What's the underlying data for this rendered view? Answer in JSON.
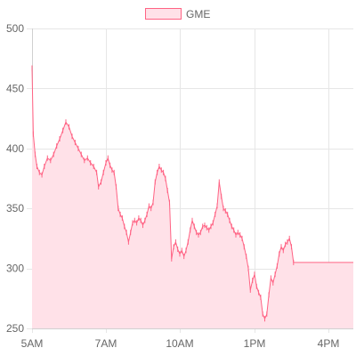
{
  "chart_data": {
    "type": "area",
    "series": [
      {
        "name": "GME",
        "color": "#ff6384",
        "fill": "#ffe1e8",
        "points": [
          [
            "05:00",
            467
          ],
          [
            "05:02",
            412
          ],
          [
            "05:05",
            395
          ],
          [
            "05:08",
            385
          ],
          [
            "05:12",
            380
          ],
          [
            "05:16",
            378
          ],
          [
            "05:20",
            385
          ],
          [
            "05:25",
            392
          ],
          [
            "05:30",
            390
          ],
          [
            "05:35",
            395
          ],
          [
            "05:40",
            402
          ],
          [
            "05:45",
            408
          ],
          [
            "05:50",
            415
          ],
          [
            "05:55",
            422
          ],
          [
            "06:00",
            418
          ],
          [
            "06:05",
            410
          ],
          [
            "06:10",
            405
          ],
          [
            "06:15",
            400
          ],
          [
            "06:20",
            395
          ],
          [
            "06:25",
            390
          ],
          [
            "06:30",
            392
          ],
          [
            "06:35",
            388
          ],
          [
            "06:40",
            385
          ],
          [
            "06:45",
            380
          ],
          [
            "06:48",
            368
          ],
          [
            "06:52",
            372
          ],
          [
            "06:56",
            380
          ],
          [
            "07:00",
            388
          ],
          [
            "07:05",
            392
          ],
          [
            "07:10",
            386
          ],
          [
            "07:15",
            382
          ],
          [
            "07:20",
            380
          ],
          [
            "07:25",
            368
          ],
          [
            "07:30",
            350
          ],
          [
            "07:35",
            345
          ],
          [
            "07:40",
            342
          ],
          [
            "07:45",
            335
          ],
          [
            "07:50",
            330
          ],
          [
            "07:55",
            322
          ],
          [
            "08:00",
            330
          ],
          [
            "08:05",
            338
          ],
          [
            "08:10",
            340
          ],
          [
            "08:15",
            338
          ],
          [
            "08:20",
            342
          ],
          [
            "08:25",
            340
          ],
          [
            "08:30",
            336
          ],
          [
            "08:35",
            340
          ],
          [
            "08:40",
            345
          ],
          [
            "08:45",
            352
          ],
          [
            "08:50",
            350
          ],
          [
            "08:55",
            355
          ],
          [
            "09:00",
            372
          ],
          [
            "09:05",
            380
          ],
          [
            "09:10",
            385
          ],
          [
            "09:15",
            382
          ],
          [
            "09:20",
            380
          ],
          [
            "09:25",
            375
          ],
          [
            "09:30",
            365
          ],
          [
            "09:35",
            355
          ],
          [
            "09:40",
            308
          ],
          [
            "09:45",
            318
          ],
          [
            "09:50",
            322
          ],
          [
            "09:55",
            316
          ],
          [
            "10:00",
            312
          ],
          [
            "10:05",
            315
          ],
          [
            "10:10",
            310
          ],
          [
            "10:15",
            315
          ],
          [
            "10:20",
            322
          ],
          [
            "10:25",
            332
          ],
          [
            "10:30",
            340
          ],
          [
            "10:35",
            335
          ],
          [
            "10:40",
            330
          ],
          [
            "10:45",
            328
          ],
          [
            "10:50",
            330
          ],
          [
            "10:55",
            335
          ],
          [
            "11:00",
            336
          ],
          [
            "11:05",
            334
          ],
          [
            "11:10",
            332
          ],
          [
            "11:15",
            335
          ],
          [
            "11:20",
            338
          ],
          [
            "11:25",
            345
          ],
          [
            "11:30",
            352
          ],
          [
            "11:35",
            372
          ],
          [
            "11:40",
            360
          ],
          [
            "11:45",
            350
          ],
          [
            "11:50",
            348
          ],
          [
            "11:55",
            345
          ],
          [
            "12:00",
            340
          ],
          [
            "12:05",
            335
          ],
          [
            "12:10",
            332
          ],
          [
            "12:15",
            328
          ],
          [
            "12:20",
            330
          ],
          [
            "12:25",
            328
          ],
          [
            "12:30",
            325
          ],
          [
            "12:35",
            318
          ],
          [
            "12:40",
            310
          ],
          [
            "12:45",
            300
          ],
          [
            "12:50",
            282
          ],
          [
            "12:55",
            290
          ],
          [
            "13:00",
            295
          ],
          [
            "13:05",
            285
          ],
          [
            "13:10",
            280
          ],
          [
            "13:15",
            276
          ],
          [
            "13:20",
            262
          ],
          [
            "13:25",
            258
          ],
          [
            "13:30",
            262
          ],
          [
            "13:35",
            278
          ],
          [
            "13:40",
            292
          ],
          [
            "13:45",
            288
          ],
          [
            "13:50",
            295
          ],
          [
            "13:55",
            302
          ],
          [
            "14:00",
            312
          ],
          [
            "14:05",
            318
          ],
          [
            "14:10",
            315
          ],
          [
            "14:15",
            320
          ],
          [
            "14:20",
            322
          ],
          [
            "14:25",
            325
          ],
          [
            "14:30",
            318
          ],
          [
            "14:35",
            305
          ]
        ]
      }
    ],
    "x_ticks": [
      "5AM",
      "7AM",
      "10AM",
      "1PM",
      "4PM"
    ],
    "y_ticks": [
      250,
      300,
      350,
      400,
      450,
      500
    ],
    "ylim": [
      250,
      500
    ],
    "grid": true,
    "legend": "top-center"
  }
}
